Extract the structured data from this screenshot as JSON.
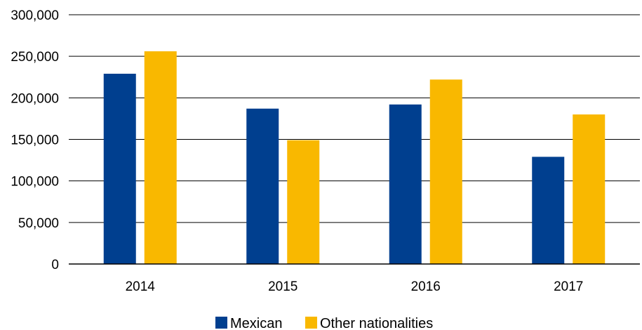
{
  "chart_data": {
    "type": "bar",
    "categories": [
      "2014",
      "2015",
      "2016",
      "2017"
    ],
    "series": [
      {
        "name": "Mexican",
        "color": "#003f8f",
        "values": [
          229000,
          187000,
          192000,
          129000
        ]
      },
      {
        "name": "Other nationalities",
        "color": "#f9b800",
        "values": [
          256000,
          149000,
          222000,
          180000
        ]
      }
    ],
    "y_ticks": [
      "0",
      "50,000",
      "100,000",
      "150,000",
      "200,000",
      "250,000",
      "300,000"
    ],
    "ylim": [
      0,
      300000
    ],
    "grid": true,
    "legend_position": "bottom"
  }
}
